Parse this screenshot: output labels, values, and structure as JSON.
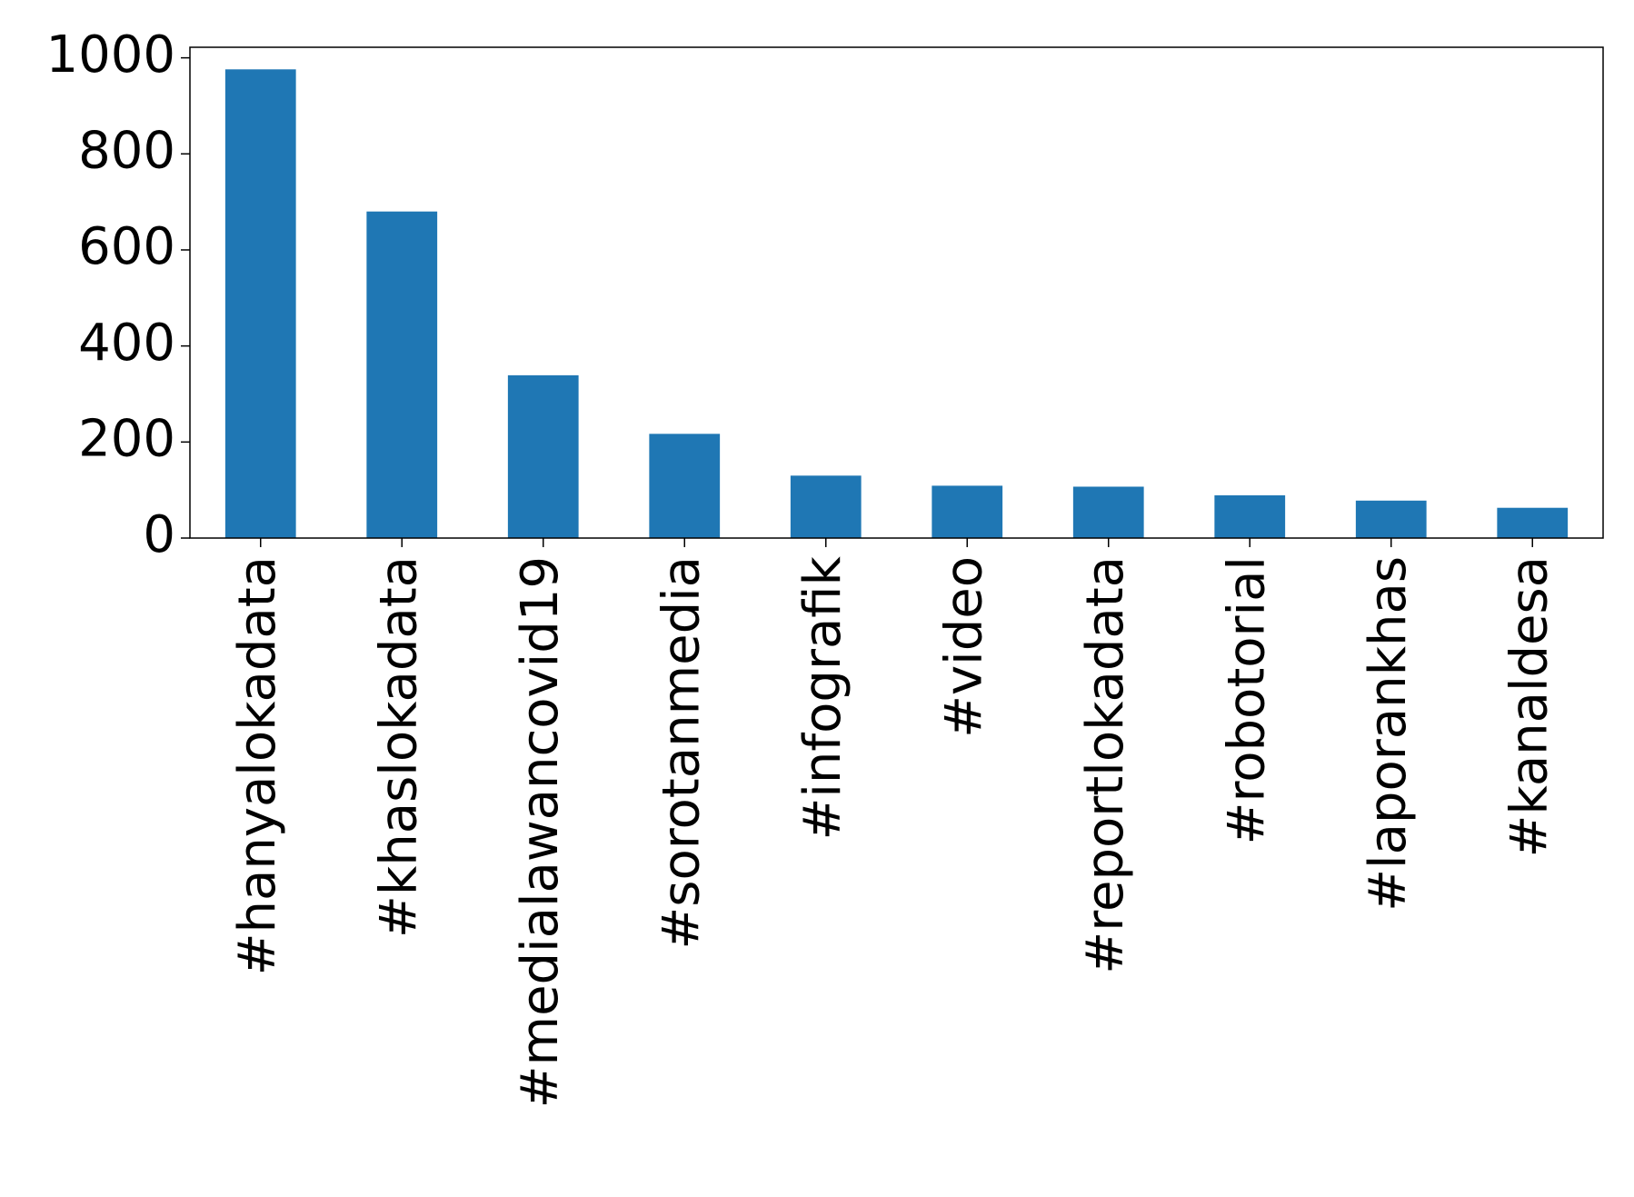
{
  "chart_data": {
    "type": "bar",
    "categories": [
      "#hanyalokadata",
      "#khaslokadata",
      "#medialawancovid19",
      "#sorotanmedia",
      "#infografik",
      "#video",
      "#reportlokadata",
      "#robotorial",
      "#laporankhas",
      "#kanaldesa"
    ],
    "values": [
      976,
      680,
      339,
      217,
      130,
      109,
      107,
      89,
      78,
      63
    ],
    "color": "#1f77b4",
    "ylim": [
      0,
      1022
    ],
    "yticks": [
      0,
      200,
      400,
      600,
      800,
      1000
    ],
    "grid": false
  }
}
